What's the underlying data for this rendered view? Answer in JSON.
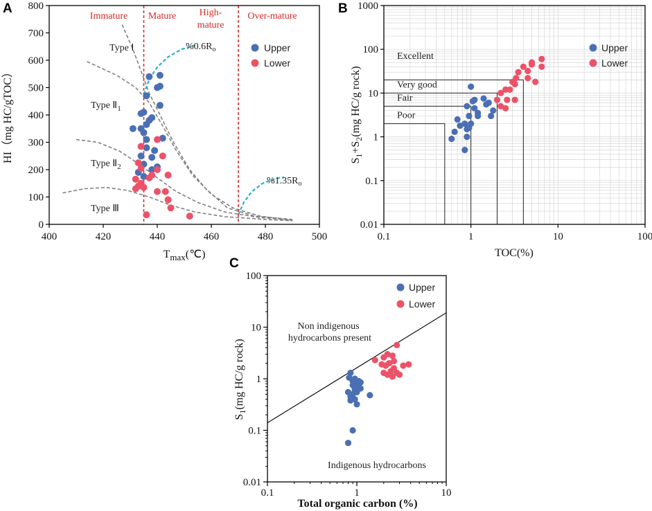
{
  "colors": {
    "upper": "#4a6fb3",
    "lower": "#ec5268",
    "zone_line": "#d42a2a",
    "type_curve": "#808080",
    "ro_curve": "#2bb0c9"
  },
  "legend": {
    "upper": "Upper",
    "lower": "Lower"
  },
  "chart_data": [
    {
      "panel": "A",
      "type": "scatter",
      "xlabel": "T",
      "xlabel_sub": "max",
      "xlabel_unit": "(℃)",
      "ylabel": "HI（mg HC/gTOC）",
      "xlim": [
        400,
        500
      ],
      "ylim": [
        0,
        800
      ],
      "xticks": [
        400,
        420,
        440,
        460,
        480,
        500
      ],
      "yticks": [
        0,
        100,
        200,
        300,
        400,
        500,
        600,
        700,
        800
      ],
      "zones": [
        {
          "label": "Immature",
          "x_from": 400,
          "x_to": 435
        },
        {
          "label": "Mature",
          "x_from": 435,
          "x_to": 470
        },
        {
          "label": "High-",
          "label2": "mature",
          "x_from": 470,
          "x_to": 470
        },
        {
          "label": "Over-mature",
          "x_from": 470,
          "x_to": 500
        }
      ],
      "zone_boundaries": [
        435,
        470
      ],
      "type_labels": [
        "Type Ⅰ",
        "Type Ⅱ",
        "Type Ⅱ",
        "Type Ⅲ"
      ],
      "type_subscripts": [
        "",
        "1",
        "2",
        ""
      ],
      "ro_labels": [
        "%0.6R",
        "%1.35R"
      ],
      "ro_sub": "o",
      "series": [
        {
          "name": "Upper",
          "x": [
            441,
            437,
            440,
            441,
            436,
            441,
            435,
            438,
            437,
            434,
            436,
            434,
            431,
            435,
            436,
            442,
            436,
            439,
            434,
            438,
            435,
            440,
            438,
            433,
            435
          ],
          "y": [
            545,
            540,
            500,
            505,
            470,
            435,
            410,
            390,
            380,
            405,
            365,
            350,
            350,
            335,
            310,
            315,
            280,
            270,
            250,
            245,
            220,
            210,
            200,
            190,
            175
          ]
        },
        {
          "name": "Lower",
          "x": [
            440,
            434,
            442,
            433,
            434,
            440,
            444,
            438,
            437,
            432,
            434,
            433,
            435,
            432,
            443,
            440,
            444,
            445,
            436,
            452
          ],
          "y": [
            310,
            285,
            250,
            225,
            205,
            200,
            180,
            180,
            170,
            165,
            150,
            140,
            135,
            130,
            120,
            120,
            90,
            60,
            35,
            30
          ]
        }
      ]
    },
    {
      "panel": "B",
      "type": "scatter",
      "scale": "log-log",
      "xlabel": "TOC(%)",
      "ylabel": "S",
      "ylabel_rest": "(mg HC/g rock)",
      "xlim": [
        0.1,
        100
      ],
      "ylim": [
        0.01,
        1000
      ],
      "xticks": [
        "0.1",
        "1",
        "10",
        "100"
      ],
      "yticks": [
        "0.01",
        "0.1",
        "1",
        "10",
        "100",
        "1000"
      ],
      "classes": [
        {
          "label": "Poor",
          "toc": 0.5,
          "s": 2
        },
        {
          "label": "Fair",
          "toc": 1,
          "s": 5
        },
        {
          "label": "Very good",
          "toc": 2,
          "s": 10
        },
        {
          "label": "Excellent",
          "toc": 4,
          "s": 20
        }
      ],
      "series": [
        {
          "name": "Upper",
          "x": [
            1.0,
            1.1,
            0.9,
            1.05,
            1.2,
            1.4,
            1.6,
            1.8,
            1.5,
            1.2,
            1.1,
            0.95,
            0.85,
            1.0,
            0.7,
            0.75,
            0.9,
            0.65,
            0.95,
            0.6,
            0.85,
            0.9,
            1.7
          ],
          "y": [
            14,
            7,
            5,
            6.5,
            3.5,
            7.5,
            6,
            4,
            5.5,
            3,
            4.5,
            3,
            2,
            2,
            2.5,
            1.8,
            1.5,
            1.3,
            1.6,
            0.9,
            0.5,
            1.0,
            3.0
          ]
        },
        {
          "name": "Lower",
          "x": [
            6.5,
            5,
            5,
            4,
            3.5,
            3.3,
            4.5,
            3,
            3.2,
            2.8,
            2.5,
            2.2,
            2,
            2.2,
            2.6,
            2.5,
            3.2,
            4.5,
            5.5,
            6.5
          ],
          "y": [
            60,
            50,
            45,
            40,
            30,
            22,
            32,
            18,
            16,
            12,
            12,
            10,
            7,
            5,
            7,
            4.5,
            7,
            22,
            18,
            40
          ]
        }
      ]
    },
    {
      "panel": "C",
      "type": "scatter",
      "scale": "log-log",
      "xlabel": "Total organic carbon (%)",
      "ylabel": "S",
      "ylabel_rest": "(mg HC/g rock)",
      "xlim": [
        0.1,
        10
      ],
      "ylim": [
        0.01,
        100
      ],
      "xticks": [
        "0.1",
        "1",
        "10"
      ],
      "yticks": [
        "0.01",
        "0.1",
        "1",
        "10",
        "100"
      ],
      "divider_line": {
        "from": [
          0.1,
          0.14
        ],
        "to": [
          10,
          19
        ]
      },
      "region_labels": [
        "Non indigenous",
        "hydrocarbons present",
        "Indigenous hydrocarbons"
      ],
      "series": [
        {
          "name": "Upper",
          "x": [
            0.85,
            0.9,
            0.95,
            1.0,
            1.05,
            1.1,
            0.82,
            0.9,
            0.95,
            1.0,
            1.05,
            0.8,
            0.85,
            0.9,
            0.95,
            1.1,
            1.0,
            0.85,
            0.95,
            1.0,
            1.4,
            0.9,
            0.8
          ],
          "y": [
            1.3,
            0.9,
            1.0,
            0.8,
            0.7,
            0.85,
            1.05,
            0.75,
            0.65,
            0.6,
            0.9,
            0.55,
            0.45,
            0.5,
            0.6,
            0.65,
            0.55,
            0.38,
            0.4,
            0.32,
            0.48,
            0.1,
            0.057
          ]
        },
        {
          "name": "Lower",
          "x": [
            2.8,
            2.2,
            2.0,
            2.5,
            1.6,
            2.3,
            1.9,
            2.6,
            2.1,
            3.3,
            2.4,
            2.0,
            2.8,
            2.2,
            2.5,
            3.0,
            3.8,
            2.6
          ],
          "y": [
            4.5,
            3.0,
            2.6,
            2.8,
            2.3,
            2.0,
            1.9,
            2.2,
            1.8,
            1.8,
            1.4,
            1.3,
            1.3,
            1.2,
            1.1,
            1.2,
            1.9,
            1.6
          ]
        }
      ]
    }
  ]
}
